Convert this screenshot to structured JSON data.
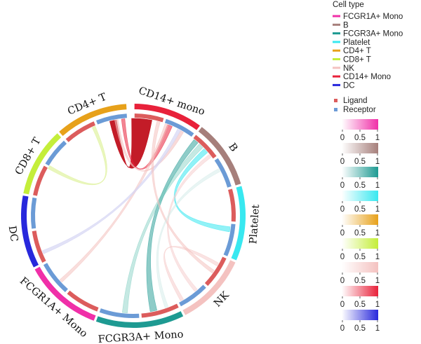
{
  "chart_data": {
    "type": "chord",
    "sectors": [
      {
        "name": "CD14+ mono",
        "color": "#e8213a",
        "start": 0,
        "end": 37
      },
      {
        "name": "B",
        "color": "#a67f7b",
        "start": 37,
        "end": 74
      },
      {
        "name": "Platelet",
        "color": "#38e8f0",
        "start": 74,
        "end": 114
      },
      {
        "name": "NK",
        "color": "#f4c2c0",
        "start": 114,
        "end": 153
      },
      {
        "name": "FCGR3A+ Mono",
        "color": "#1e9a92",
        "start": 153,
        "end": 200
      },
      {
        "name": "FCGR1A+ Mono",
        "color": "#f02fa8",
        "start": 200,
        "end": 242
      },
      {
        "name": "DC",
        "color": "#2828dc",
        "start": 242,
        "end": 281
      },
      {
        "name": "CD8+ T",
        "color": "#c4ee3a",
        "start": 281,
        "end": 318
      },
      {
        "name": "CD4+ T",
        "color": "#e7a11a",
        "start": 318,
        "end": 357
      }
    ],
    "inner_track": {
      "ligand_color": "#dc5c5c",
      "receptor_color": "#6b9bd6",
      "segments": [
        {
          "start": 0,
          "end": 18,
          "type": "Ligand"
        },
        {
          "start": 18,
          "end": 37,
          "type": "Receptor"
        },
        {
          "start": 37,
          "end": 55,
          "type": "Ligand"
        },
        {
          "start": 55,
          "end": 74,
          "type": "Receptor"
        },
        {
          "start": 74,
          "end": 94,
          "type": "Ligand"
        },
        {
          "start": 94,
          "end": 114,
          "type": "Receptor"
        },
        {
          "start": 114,
          "end": 134,
          "type": "Ligand"
        },
        {
          "start": 134,
          "end": 153,
          "type": "Receptor"
        },
        {
          "start": 153,
          "end": 176,
          "type": "Ligand"
        },
        {
          "start": 176,
          "end": 200,
          "type": "Receptor"
        },
        {
          "start": 200,
          "end": 221,
          "type": "Ligand"
        },
        {
          "start": 221,
          "end": 242,
          "type": "Receptor"
        },
        {
          "start": 242,
          "end": 262,
          "type": "Ligand"
        },
        {
          "start": 262,
          "end": 281,
          "type": "Receptor"
        },
        {
          "start": 281,
          "end": 300,
          "type": "Ligand"
        },
        {
          "start": 300,
          "end": 318,
          "type": "Receptor"
        },
        {
          "start": 318,
          "end": 338,
          "type": "Ligand"
        },
        {
          "start": 338,
          "end": 357,
          "type": "Receptor"
        }
      ]
    },
    "links": [
      {
        "from": 348,
        "to": 5,
        "from_width": 4,
        "to_width": 12,
        "color": "#c0101c",
        "alpha": 0.95
      },
      {
        "from": 22,
        "to": 354,
        "from_width": 3,
        "to_width": 2,
        "color": "#e8213a",
        "alpha": 0.55
      },
      {
        "from": 30,
        "to": 350,
        "from_width": 2,
        "to_width": 2,
        "color": "#f4c2c0",
        "alpha": 0.6
      },
      {
        "from": 168,
        "to": 40,
        "from_width": 4,
        "to_width": 3,
        "color": "#1e9a92",
        "alpha": 0.5
      },
      {
        "from": 185,
        "to": 44,
        "from_width": 3,
        "to_width": 3,
        "color": "#6fc7b9",
        "alpha": 0.4
      },
      {
        "from": 98,
        "to": 48,
        "from_width": 3,
        "to_width": 3,
        "color": "#38e8f0",
        "alpha": 0.55
      },
      {
        "from": 300,
        "to": 336,
        "from_width": 2,
        "to_width": 2,
        "color": "#e0f2a0",
        "alpha": 0.7
      },
      {
        "from": 228,
        "to": 20,
        "from_width": 2,
        "to_width": 2,
        "color": "#f4c2c0",
        "alpha": 0.55
      },
      {
        "from": 248,
        "to": 28,
        "from_width": 2,
        "to_width": 2,
        "color": "#d6d6f4",
        "alpha": 0.7
      },
      {
        "from": 125,
        "to": 15,
        "from_width": 2,
        "to_width": 2,
        "color": "#f4c2c0",
        "alpha": 0.55
      },
      {
        "from": 140,
        "to": 52,
        "from_width": 2,
        "to_width": 2,
        "color": "#f6d0d0",
        "alpha": 0.55
      },
      {
        "from": 160,
        "to": 62,
        "from_width": 2,
        "to_width": 2,
        "color": "#cfe9e6",
        "alpha": 0.45
      },
      {
        "from": 120,
        "to": 150,
        "from_width": 2,
        "to_width": 2,
        "color": "#f4c2c0",
        "alpha": 0.45
      }
    ],
    "legend": {
      "cell_type_title": "Cell type",
      "cell_types": [
        {
          "label": "FCGR1A+ Mono",
          "color": "#f02fa8"
        },
        {
          "label": "B",
          "color": "#a67f7b"
        },
        {
          "label": "FCGR3A+ Mono",
          "color": "#1e9a92"
        },
        {
          "label": "Platelet",
          "color": "#38e8f0"
        },
        {
          "label": "CD4+ T",
          "color": "#e7a11a"
        },
        {
          "label": "CD8+ T",
          "color": "#c4ee3a"
        },
        {
          "label": "NK",
          "color": "#f4c2c0"
        },
        {
          "label": "CD14+ Mono",
          "color": "#e8213a"
        },
        {
          "label": "DC",
          "color": "#2828dc"
        }
      ],
      "track_types": [
        {
          "label": "Ligand",
          "color": "#dc5c5c"
        },
        {
          "label": "Receptor",
          "color": "#6b9bd6"
        }
      ],
      "color_scales": [
        {
          "color": "#f02fa8",
          "ticks": [
            "0",
            "0.5",
            "1"
          ]
        },
        {
          "color": "#a67f7b",
          "ticks": [
            "0",
            "0.5",
            "1"
          ]
        },
        {
          "color": "#1e9a92",
          "ticks": [
            "0",
            "0.5",
            "1"
          ]
        },
        {
          "color": "#38e8f0",
          "ticks": [
            "0",
            "0.5",
            "1"
          ]
        },
        {
          "color": "#e7a11a",
          "ticks": [
            "0",
            "0.5",
            "1"
          ]
        },
        {
          "color": "#c4ee3a",
          "ticks": [
            "0",
            "0.5",
            "1"
          ]
        },
        {
          "color": "#f4c2c0",
          "ticks": [
            "0",
            "0.5",
            "1"
          ]
        },
        {
          "color": "#e8213a",
          "ticks": [
            "0",
            "0.5",
            "1"
          ]
        },
        {
          "color": "#2828dc",
          "ticks": [
            "0",
            "0.5",
            "1"
          ]
        }
      ]
    }
  }
}
